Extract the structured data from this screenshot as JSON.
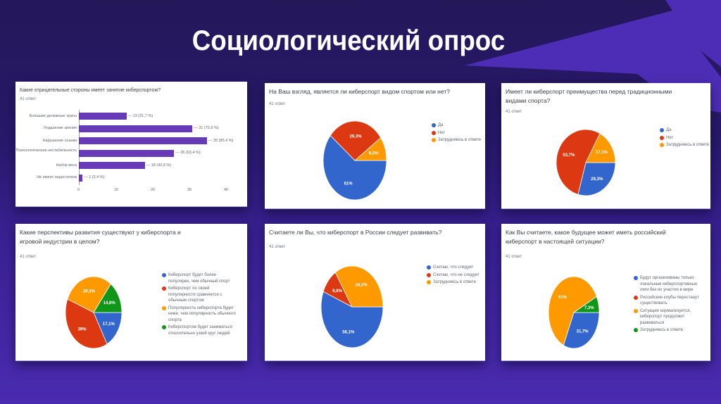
{
  "slide": {
    "title": "Социологический опрос",
    "colors": {
      "bg_top": "#24175a",
      "bg_bottom": "#4a2bb0",
      "bolt": "#4d2db5",
      "bar": "#673ab7",
      "blue": "#3366cc",
      "red": "#dc3912",
      "orange": "#ff9900",
      "green": "#109618"
    }
  },
  "chart_data": [
    {
      "type": "bar",
      "orientation": "horizontal",
      "title": "Какие отрицательные стороны имеет занятие киберспортом?",
      "responses": "41 ответ",
      "categories": [
        "Большие денежные траты",
        "Ухудшение зрения",
        "Нарушение осанки",
        "Психологическая нестабильность",
        "Набор веса",
        "Не имеет недостатков"
      ],
      "values": [
        13,
        31,
        35,
        26,
        18,
        1
      ],
      "value_labels": [
        "13 (31,7 %)",
        "31 (75,6 %)",
        "35 (85,4 %)",
        "26 (63,4 %)",
        "18 (43,9 %)",
        "1 (2,4 %)"
      ],
      "xticks": [
        "0",
        "10",
        "20",
        "30",
        "40"
      ],
      "xlim": [
        0,
        40
      ],
      "color": "#673ab7"
    },
    {
      "type": "pie",
      "title": "На Ваш взгляд, является ли киберспорт видом спортом или нет?",
      "responses": "41 ответ",
      "labels": [
        "Да",
        "Нет",
        "Затрудняюсь в ответе"
      ],
      "values": [
        61,
        29.3,
        9.8
      ],
      "value_labels": [
        "61%",
        "29,3%",
        "9,8%"
      ],
      "colors": [
        "#3366cc",
        "#dc3912",
        "#ff9900"
      ]
    },
    {
      "type": "pie",
      "title": "Имеет ли киберспорт преимущества перед традиционными видами спорта?",
      "responses": "41 ответ",
      "labels": [
        "Да",
        "Нет",
        "Затрудняюсь в ответе"
      ],
      "values": [
        29.3,
        53.7,
        17.1
      ],
      "value_labels": [
        "29,3%",
        "53,7%",
        "17,1%"
      ],
      "colors": [
        "#3366cc",
        "#dc3912",
        "#ff9900"
      ]
    },
    {
      "type": "pie",
      "title": "Какие перспективы развития существуют у киберспорта и игровой индустрии в целом?",
      "responses": "41 ответ",
      "labels": [
        "Киберспорт будет более популярен, чем обычный спорт",
        "Киберспорт по своей популярности сравняется с обычным спортом",
        "Популярность киберспорта будет ниже, чем популярность обычного спорта",
        "Киберспортом будет заниматься относительно узкий круг людей"
      ],
      "values": [
        17.1,
        39,
        29.3,
        14.6
      ],
      "value_labels": [
        "17,1%",
        "39%",
        "29,3%",
        "14,6%"
      ],
      "colors": [
        "#3366cc",
        "#dc3912",
        "#ff9900",
        "#109618"
      ]
    },
    {
      "type": "pie",
      "title": "Считаете ли Вы, что киберспорт в России следует развивать?",
      "responses": "41 ответ",
      "labels": [
        "Считаю, что следует",
        "Считаю, что не следует",
        "Затрудняюсь в ответе"
      ],
      "values": [
        56.1,
        9.8,
        34.1
      ],
      "value_labels": [
        "56,1%",
        "9,8%",
        "34,1%"
      ],
      "colors": [
        "#3366cc",
        "#dc3912",
        "#ff9900"
      ]
    },
    {
      "type": "pie",
      "title": "Как Вы считаете, какое будущее может иметь российский киберспорт в настоящей ситуации?",
      "responses": "41 ответ",
      "labels": [
        "Будут организованы только локальные киберспортивные лиги без их участия в мире",
        "Российские клубы перестанут существовать",
        "Ситуация нормализуется, киберспорт продолжит развиваться",
        "Затрудняюсь в ответе"
      ],
      "values": [
        31.7,
        0,
        61,
        7.3
      ],
      "value_labels": [
        "31,7%",
        "",
        "61%",
        "7,3%"
      ],
      "colors": [
        "#3366cc",
        "#dc3912",
        "#ff9900",
        "#109618"
      ]
    }
  ]
}
